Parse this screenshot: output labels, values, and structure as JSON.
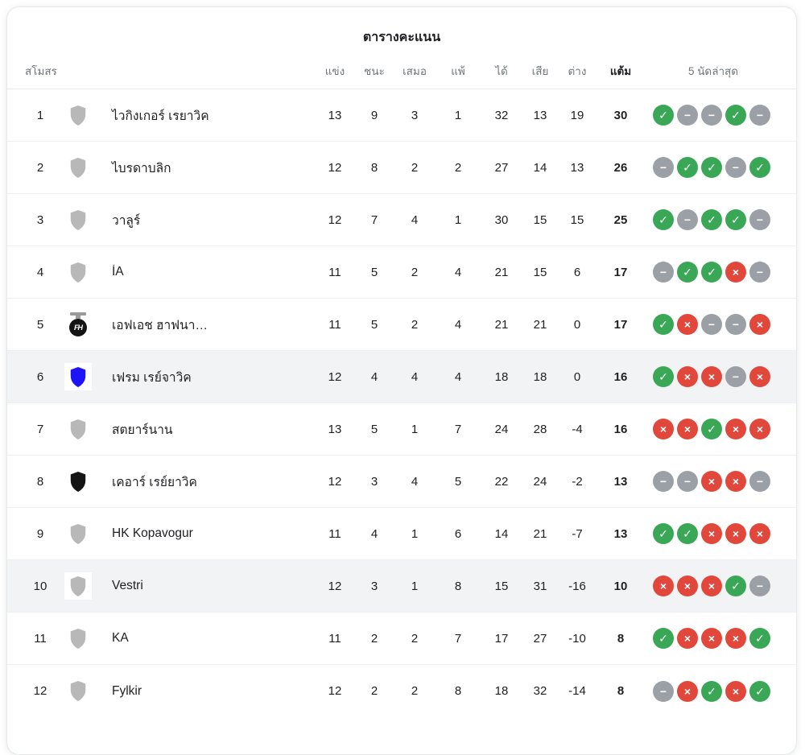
{
  "card": {
    "title": "ตารางคะแนน"
  },
  "columns": {
    "club": "สโมสร",
    "played": "แข่ง",
    "wins": "ชนะ",
    "draws": "เสมอ",
    "losses": "แพ้",
    "goals_for": "ได้",
    "goals_against": "เสีย",
    "goal_diff": "ต่าง",
    "points": "แต้ม",
    "last5": "5 นัดล่าสุด"
  },
  "form_glyphs": {
    "W": "✓",
    "D": "−",
    "L": "×"
  },
  "colors": {
    "win": "#3aa757",
    "draw": "#9aa0a6",
    "loss": "#e2473b",
    "row_highlight": "#f1f3f4",
    "badge_gray": "#b8b8b8",
    "badge_blue": "#1e14fa",
    "badge_black": "#141414"
  },
  "rows": [
    {
      "pos": "1",
      "team": "ไวกิงเกอร์ เรยาวิค",
      "badge": "gray",
      "highlighted": false,
      "p": "13",
      "w": "9",
      "d": "3",
      "l": "1",
      "gf": "32",
      "ga": "13",
      "gd": "19",
      "pts": "30",
      "form": [
        "W",
        "D",
        "D",
        "W",
        "D"
      ]
    },
    {
      "pos": "2",
      "team": "ไบรดาบลิก",
      "badge": "gray",
      "highlighted": false,
      "p": "12",
      "w": "8",
      "d": "2",
      "l": "2",
      "gf": "27",
      "ga": "14",
      "gd": "13",
      "pts": "26",
      "form": [
        "D",
        "W",
        "W",
        "D",
        "W"
      ]
    },
    {
      "pos": "3",
      "team": "วาลูร์",
      "badge": "gray",
      "highlighted": false,
      "p": "12",
      "w": "7",
      "d": "4",
      "l": "1",
      "gf": "30",
      "ga": "15",
      "gd": "15",
      "pts": "25",
      "form": [
        "W",
        "D",
        "W",
        "W",
        "D"
      ]
    },
    {
      "pos": "4",
      "team": "ÍA",
      "badge": "gray",
      "highlighted": false,
      "p": "11",
      "w": "5",
      "d": "2",
      "l": "4",
      "gf": "21",
      "ga": "15",
      "gd": "6",
      "pts": "17",
      "form": [
        "D",
        "W",
        "W",
        "L",
        "D"
      ]
    },
    {
      "pos": "5",
      "team": "เอฟเอช ฮาฟนา…",
      "badge": "fh",
      "highlighted": false,
      "p": "11",
      "w": "5",
      "d": "2",
      "l": "4",
      "gf": "21",
      "ga": "21",
      "gd": "0",
      "pts": "17",
      "form": [
        "W",
        "L",
        "D",
        "D",
        "L"
      ]
    },
    {
      "pos": "6",
      "team": "เฟรม เรย์จาวิค",
      "badge": "blue",
      "highlighted": true,
      "p": "12",
      "w": "4",
      "d": "4",
      "l": "4",
      "gf": "18",
      "ga": "18",
      "gd": "0",
      "pts": "16",
      "form": [
        "W",
        "L",
        "L",
        "D",
        "L"
      ]
    },
    {
      "pos": "7",
      "team": "สตยาร์นาน",
      "badge": "gray",
      "highlighted": false,
      "p": "13",
      "w": "5",
      "d": "1",
      "l": "7",
      "gf": "24",
      "ga": "28",
      "gd": "-4",
      "pts": "16",
      "form": [
        "L",
        "L",
        "W",
        "L",
        "L"
      ]
    },
    {
      "pos": "8",
      "team": "เคอาร์ เรย์ยาวิค",
      "badge": "black",
      "highlighted": false,
      "p": "12",
      "w": "3",
      "d": "4",
      "l": "5",
      "gf": "22",
      "ga": "24",
      "gd": "-2",
      "pts": "13",
      "form": [
        "D",
        "D",
        "L",
        "L",
        "D"
      ]
    },
    {
      "pos": "9",
      "team": "HK Kopavogur",
      "badge": "gray",
      "highlighted": false,
      "p": "11",
      "w": "4",
      "d": "1",
      "l": "6",
      "gf": "14",
      "ga": "21",
      "gd": "-7",
      "pts": "13",
      "form": [
        "W",
        "W",
        "L",
        "L",
        "L"
      ]
    },
    {
      "pos": "10",
      "team": "Vestri",
      "badge": "gray",
      "highlighted": true,
      "p": "12",
      "w": "3",
      "d": "1",
      "l": "8",
      "gf": "15",
      "ga": "31",
      "gd": "-16",
      "pts": "10",
      "form": [
        "L",
        "L",
        "L",
        "W",
        "D"
      ]
    },
    {
      "pos": "11",
      "team": "KA",
      "badge": "gray",
      "highlighted": false,
      "p": "11",
      "w": "2",
      "d": "2",
      "l": "7",
      "gf": "17",
      "ga": "27",
      "gd": "-10",
      "pts": "8",
      "form": [
        "W",
        "L",
        "L",
        "L",
        "W"
      ]
    },
    {
      "pos": "12",
      "team": "Fylkir",
      "badge": "gray",
      "highlighted": false,
      "p": "12",
      "w": "2",
      "d": "2",
      "l": "8",
      "gf": "18",
      "ga": "32",
      "gd": "-14",
      "pts": "8",
      "form": [
        "D",
        "L",
        "W",
        "L",
        "W"
      ]
    }
  ]
}
